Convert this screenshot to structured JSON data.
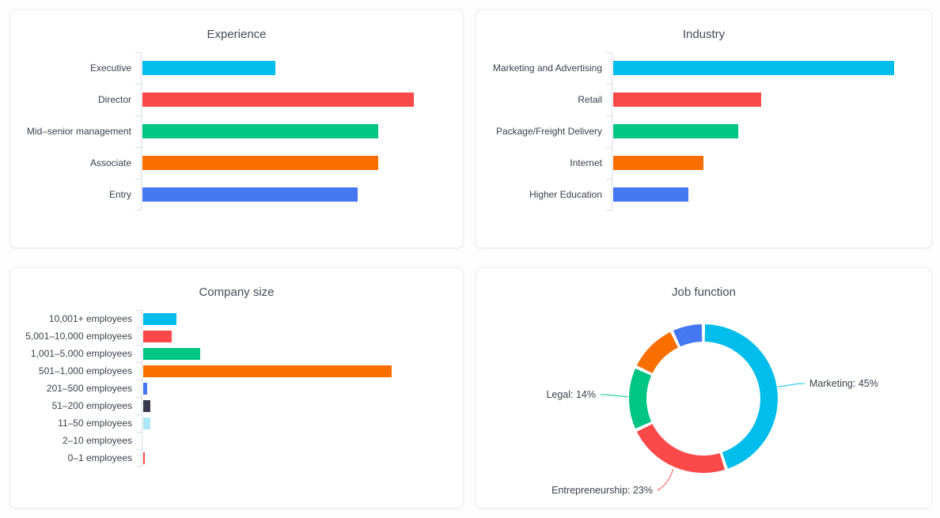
{
  "chart_data": [
    {
      "id": "experience",
      "type": "bar",
      "orientation": "horizontal",
      "title": "Experience",
      "categories": [
        "Executive",
        "Director",
        "Mid–senior management",
        "Associate",
        "Entry"
      ],
      "values": [
        12.2,
        24.9,
        21.6,
        21.6,
        19.7
      ],
      "colors": [
        "#00bdeb",
        "#fb4848",
        "#00c583",
        "#f86e01",
        "#4477f1"
      ],
      "xlim": [
        0,
        29
      ],
      "xlabel": "",
      "ylabel": "",
      "grid": false,
      "legend": false
    },
    {
      "id": "industry",
      "type": "bar",
      "orientation": "horizontal",
      "title": "Industry",
      "categories": [
        "Marketing and Advertising",
        "Retail",
        "Package/Freight Delivery",
        "Internet",
        "Higher Education"
      ],
      "values": [
        39.1,
        20.6,
        17.4,
        12.5,
        10.4
      ],
      "colors": [
        "#00bdeb",
        "#fb4848",
        "#00c583",
        "#f86e01",
        "#4477f1"
      ],
      "xlim": [
        0,
        44
      ],
      "xlabel": "",
      "ylabel": "",
      "grid": false,
      "legend": false
    },
    {
      "id": "company_size",
      "type": "bar",
      "orientation": "horizontal",
      "title": "Company size",
      "categories": [
        "10,001+ employees",
        "5,001–10,000 employees",
        "1,001–5,000 employees",
        "501–1,000 employees",
        "201–500 employees",
        "51–200 employees",
        "11–50 employees",
        "2–10 employees",
        "0–1 employees"
      ],
      "values": [
        8.6,
        7.3,
        14.7,
        64.3,
        1.0,
        1.9,
        1.9,
        0,
        0.4
      ],
      "colors": [
        "#00bdeb",
        "#fb4848",
        "#00c583",
        "#f86e01",
        "#4477f1",
        "#373b4d",
        "#abe6f9",
        "#ffffff",
        "#fb4848"
      ],
      "xlim": [
        0,
        82
      ],
      "xlabel": "",
      "ylabel": "",
      "grid": false,
      "legend": false
    },
    {
      "id": "job_function",
      "type": "pie",
      "donut": true,
      "title": "Job function",
      "segments": [
        {
          "label": "Marketing",
          "value": 45,
          "labeled": true,
          "color": "#00bdeb"
        },
        {
          "label": "Entrepreneurship",
          "value": 23,
          "labeled": true,
          "color": "#fb4848"
        },
        {
          "label": "Legal",
          "value": 14,
          "labeled": true,
          "color": "#00c583"
        },
        {
          "label": "",
          "value": 11,
          "labeled": false,
          "color": "#f86e01"
        },
        {
          "label": "",
          "value": 7,
          "labeled": false,
          "color": "#4477f1"
        }
      ],
      "start_angle_deg_from_top": 0,
      "direction": "clockwise",
      "annotation_format": "{label}: {value}%"
    }
  ]
}
